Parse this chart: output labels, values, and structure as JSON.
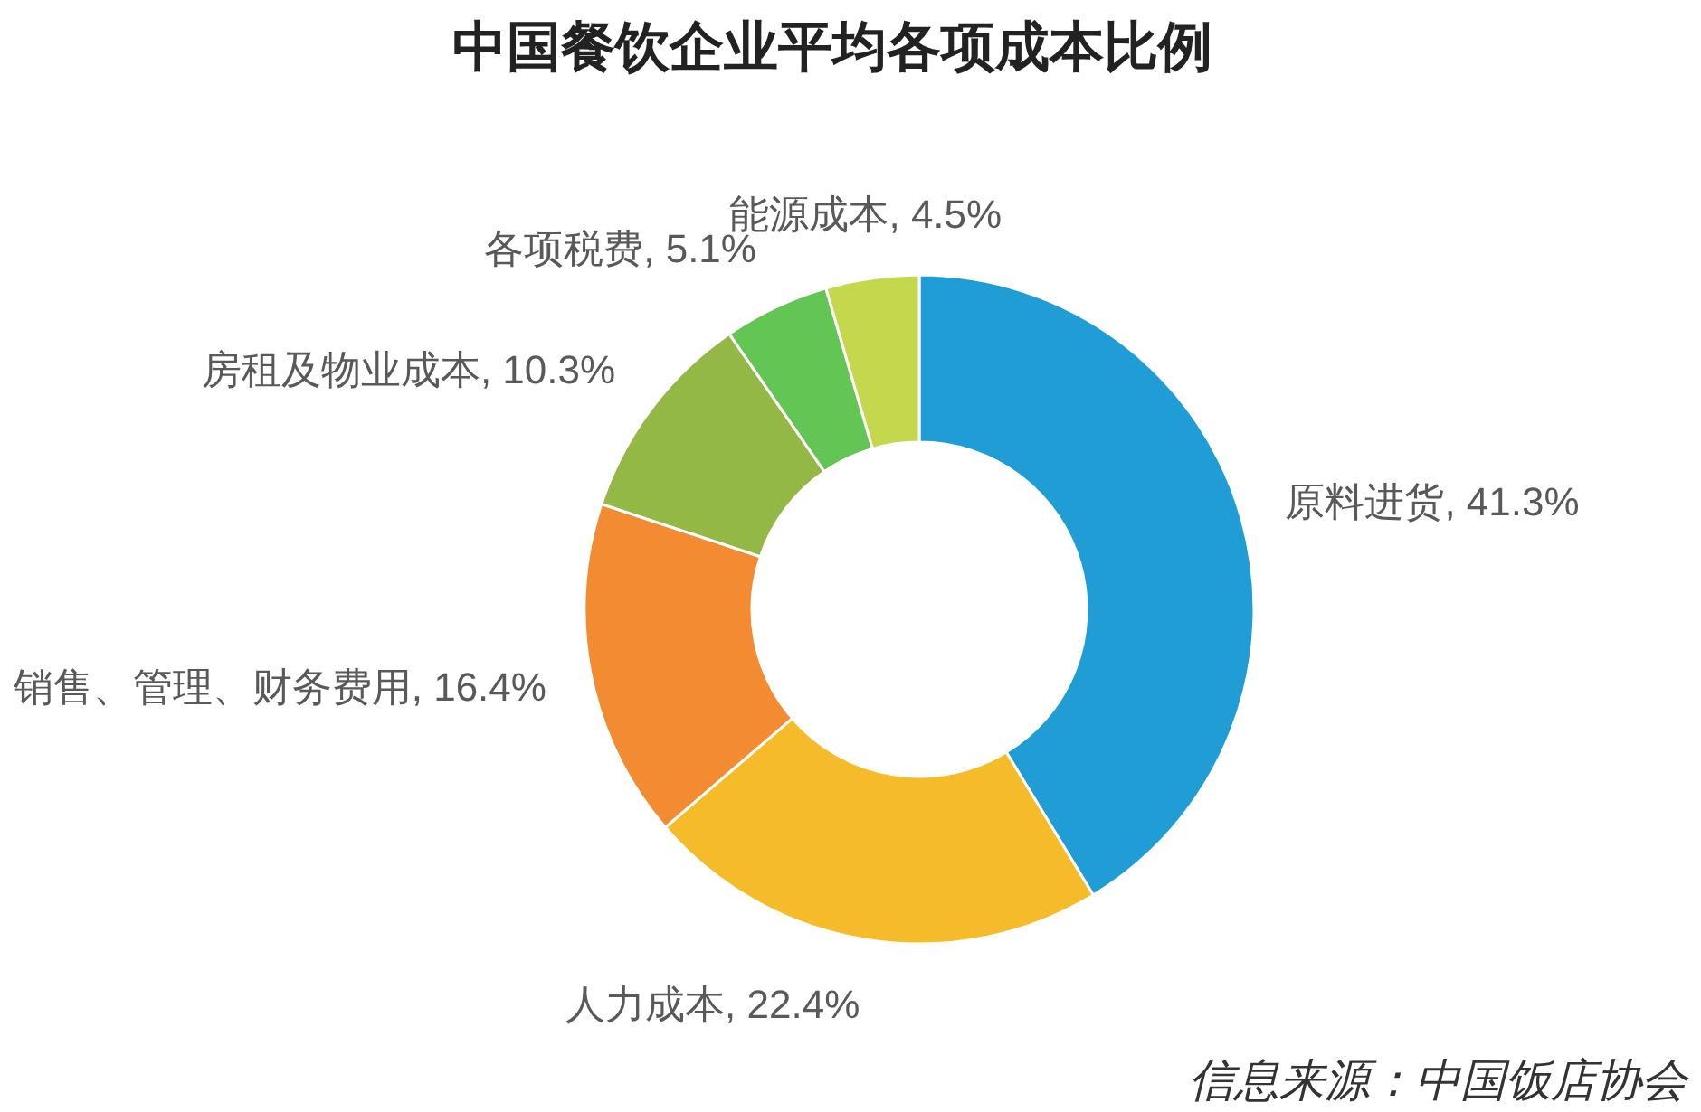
{
  "chart_data": {
    "type": "donut",
    "title": "中国餐饮企业平均各项成本比例",
    "categories": [
      "原料进货",
      "人力成本",
      "销售、管理、财务费用",
      "房租及物业成本",
      "各项税费",
      "能源成本"
    ],
    "values": [
      41.3,
      22.4,
      16.4,
      10.3,
      5.1,
      4.5
    ],
    "value_labels": [
      "41.3%",
      "22.4%",
      "16.4%",
      "10.3%",
      "5.1%",
      "4.5%"
    ],
    "colors": [
      "#209dd4",
      "#f4bc2b",
      "#f38b32",
      "#93b845",
      "#63c553",
      "#c5d84d"
    ],
    "annotations": [
      "信息来源：中国饭店协会"
    ]
  }
}
